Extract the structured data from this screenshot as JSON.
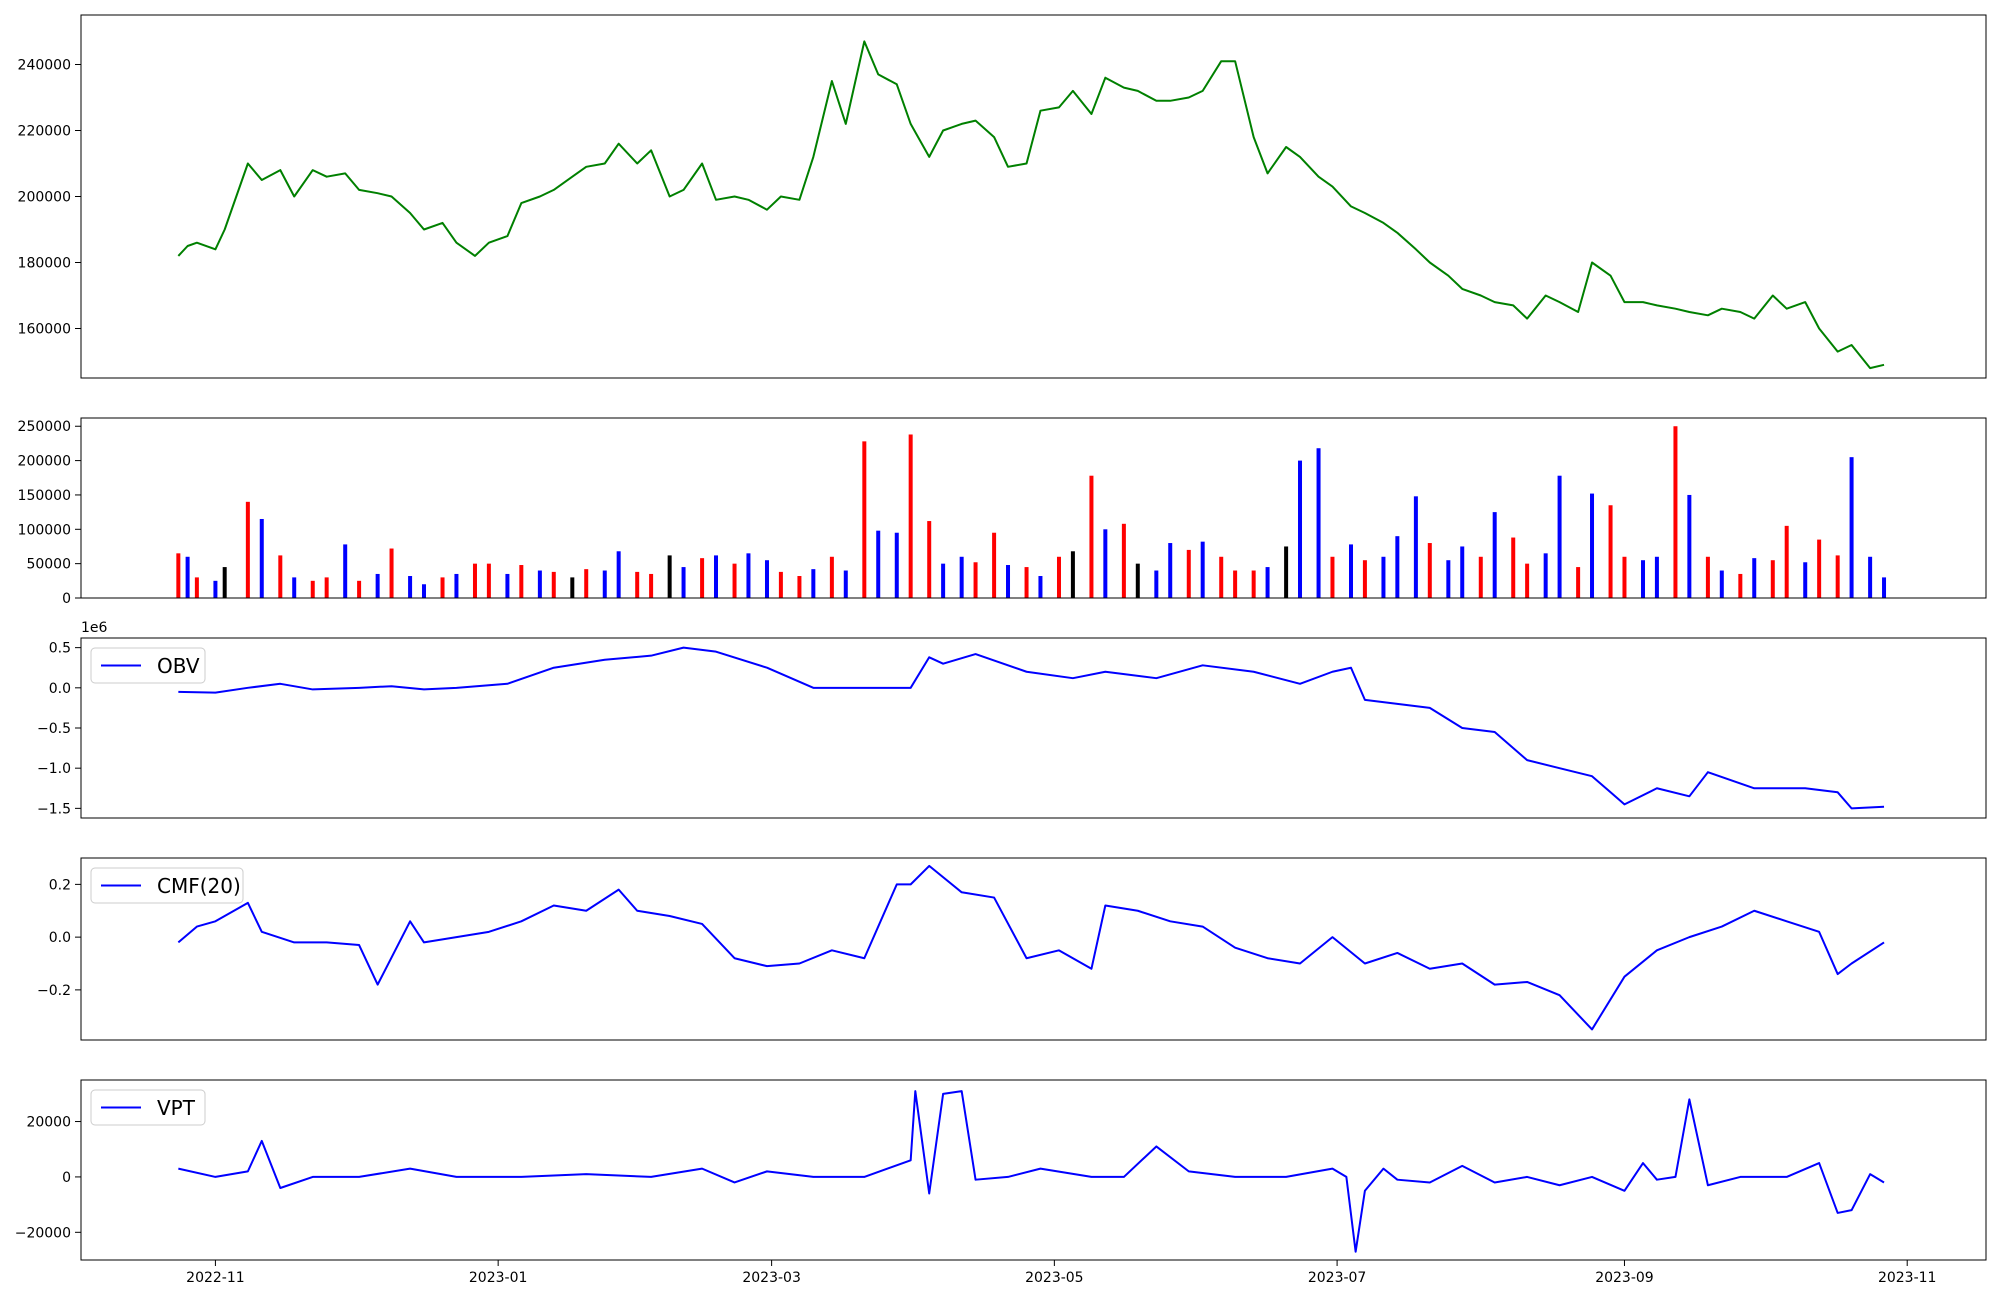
{
  "figure": {
    "x_tick_labels": [
      "2022-11",
      "2023-01",
      "2023-03",
      "2023-05",
      "2023-07",
      "2023-09",
      "2023-11"
    ]
  },
  "chart_data": [
    {
      "type": "line",
      "color": "#008000",
      "xrange": [
        "2022-10-03",
        "2023-11-18"
      ],
      "ylim": [
        145000,
        255000
      ],
      "y_ticks": [
        "160000",
        "180000",
        "200000",
        "220000",
        "240000"
      ],
      "y_tick_values": [
        160000,
        180000,
        200000,
        220000,
        240000
      ],
      "x": [
        "2022-10-24",
        "2022-10-26",
        "2022-10-28",
        "2022-11-01",
        "2022-11-03",
        "2022-11-08",
        "2022-11-11",
        "2022-11-15",
        "2022-11-18",
        "2022-11-22",
        "2022-11-25",
        "2022-11-29",
        "2022-12-02",
        "2022-12-06",
        "2022-12-09",
        "2022-12-13",
        "2022-12-16",
        "2022-12-20",
        "2022-12-23",
        "2022-12-27",
        "2022-12-30",
        "2023-01-03",
        "2023-01-06",
        "2023-01-10",
        "2023-01-13",
        "2023-01-17",
        "2023-01-20",
        "2023-01-24",
        "2023-01-27",
        "2023-01-31",
        "2023-02-03",
        "2023-02-07",
        "2023-02-10",
        "2023-02-14",
        "2023-02-17",
        "2023-02-21",
        "2023-02-24",
        "2023-02-28",
        "2023-03-03",
        "2023-03-07",
        "2023-03-10",
        "2023-03-14",
        "2023-03-17",
        "2023-03-21",
        "2023-03-24",
        "2023-03-28",
        "2023-03-31",
        "2023-04-04",
        "2023-04-07",
        "2023-04-11",
        "2023-04-14",
        "2023-04-18",
        "2023-04-21",
        "2023-04-25",
        "2023-04-28",
        "2023-05-02",
        "2023-05-05",
        "2023-05-09",
        "2023-05-12",
        "2023-05-16",
        "2023-05-19",
        "2023-05-23",
        "2023-05-26",
        "2023-05-30",
        "2023-06-02",
        "2023-06-06",
        "2023-06-09",
        "2023-06-13",
        "2023-06-16",
        "2023-06-20",
        "2023-06-23",
        "2023-06-27",
        "2023-06-30",
        "2023-07-04",
        "2023-07-07",
        "2023-07-11",
        "2023-07-14",
        "2023-07-18",
        "2023-07-21",
        "2023-07-25",
        "2023-07-28",
        "2023-08-01",
        "2023-08-04",
        "2023-08-08",
        "2023-08-11",
        "2023-08-15",
        "2023-08-18",
        "2023-08-22",
        "2023-08-25",
        "2023-08-29",
        "2023-09-01",
        "2023-09-05",
        "2023-09-08",
        "2023-09-12",
        "2023-09-15",
        "2023-09-19",
        "2023-09-22",
        "2023-09-26",
        "2023-09-29",
        "2023-10-03",
        "2023-10-06",
        "2023-10-10",
        "2023-10-13",
        "2023-10-17",
        "2023-10-20",
        "2023-10-24",
        "2023-10-27"
      ],
      "values": [
        182000,
        185000,
        186000,
        184000,
        190000,
        210000,
        205000,
        208000,
        200000,
        208000,
        206000,
        207000,
        202000,
        201000,
        200000,
        195000,
        190000,
        192000,
        186000,
        182000,
        186000,
        188000,
        198000,
        200000,
        202000,
        206000,
        209000,
        210000,
        216000,
        210000,
        214000,
        200000,
        202000,
        210000,
        199000,
        200000,
        199000,
        196000,
        200000,
        199000,
        212000,
        235000,
        222000,
        247000,
        237000,
        234000,
        222000,
        212000,
        220000,
        222000,
        223000,
        218000,
        209000,
        210000,
        226000,
        227000,
        232000,
        225000,
        236000,
        233000,
        232000,
        229000,
        229000,
        230000,
        232000,
        241000,
        241000,
        218000,
        207000,
        215000,
        212000,
        206000,
        203000,
        197000,
        195000,
        192000,
        189000,
        184000,
        180000,
        176000,
        172000,
        170000,
        168000,
        167000,
        163000,
        170000,
        168000,
        165000,
        180000,
        176000,
        168000,
        168000,
        167000,
        166000,
        165000,
        164000,
        166000,
        165000,
        163000,
        170000,
        166000,
        168000,
        160000,
        153000,
        155000,
        148000,
        149000
      ]
    },
    {
      "type": "bar",
      "colors": {
        "up": "#ff0000",
        "down": "#0000ff",
        "flat": "#000000"
      },
      "ylim": [
        0,
        262000
      ],
      "y_ticks": [
        "0",
        "50000",
        "100000",
        "150000",
        "200000",
        "250000"
      ],
      "y_tick_values": [
        0,
        50000,
        100000,
        150000,
        200000,
        250000
      ],
      "x": [
        "2022-10-24",
        "2022-10-26",
        "2022-10-28",
        "2022-11-01",
        "2022-11-03",
        "2022-11-08",
        "2022-11-11",
        "2022-11-15",
        "2022-11-18",
        "2022-11-22",
        "2022-11-25",
        "2022-11-29",
        "2022-12-02",
        "2022-12-06",
        "2022-12-09",
        "2022-12-13",
        "2022-12-16",
        "2022-12-20",
        "2022-12-23",
        "2022-12-27",
        "2022-12-30",
        "2023-01-03",
        "2023-01-06",
        "2023-01-10",
        "2023-01-13",
        "2023-01-17",
        "2023-01-20",
        "2023-01-24",
        "2023-01-27",
        "2023-01-31",
        "2023-02-03",
        "2023-02-07",
        "2023-02-10",
        "2023-02-14",
        "2023-02-17",
        "2023-02-21",
        "2023-02-24",
        "2023-02-28",
        "2023-03-03",
        "2023-03-07",
        "2023-03-10",
        "2023-03-14",
        "2023-03-17",
        "2023-03-21",
        "2023-03-24",
        "2023-03-28",
        "2023-03-31",
        "2023-04-04",
        "2023-04-07",
        "2023-04-11",
        "2023-04-14",
        "2023-04-18",
        "2023-04-21",
        "2023-04-25",
        "2023-04-28",
        "2023-05-02",
        "2023-05-05",
        "2023-05-09",
        "2023-05-12",
        "2023-05-16",
        "2023-05-19",
        "2023-05-23",
        "2023-05-26",
        "2023-05-30",
        "2023-06-02",
        "2023-06-06",
        "2023-06-09",
        "2023-06-13",
        "2023-06-16",
        "2023-06-20",
        "2023-06-23",
        "2023-06-27",
        "2023-06-30",
        "2023-07-04",
        "2023-07-07",
        "2023-07-11",
        "2023-07-14",
        "2023-07-18",
        "2023-07-21",
        "2023-07-25",
        "2023-07-28",
        "2023-08-01",
        "2023-08-04",
        "2023-08-08",
        "2023-08-11",
        "2023-08-15",
        "2023-08-18",
        "2023-08-22",
        "2023-08-25",
        "2023-08-29",
        "2023-09-01",
        "2023-09-05",
        "2023-09-08",
        "2023-09-12",
        "2023-09-15",
        "2023-09-19",
        "2023-09-22",
        "2023-09-26",
        "2023-09-29",
        "2023-10-03",
        "2023-10-06",
        "2023-10-10",
        "2023-10-13",
        "2023-10-17",
        "2023-10-20",
        "2023-10-24",
        "2023-10-27"
      ],
      "values": [
        65000,
        60000,
        30000,
        25000,
        45000,
        140000,
        115000,
        62000,
        30000,
        25000,
        30000,
        78000,
        25000,
        35000,
        72000,
        32000,
        20000,
        30000,
        35000,
        50000,
        50000,
        35000,
        48000,
        40000,
        38000,
        30000,
        42000,
        40000,
        68000,
        38000,
        35000,
        62000,
        45000,
        58000,
        62000,
        50000,
        65000,
        55000,
        38000,
        32000,
        42000,
        60000,
        40000,
        228000,
        98000,
        95000,
        238000,
        112000,
        50000,
        60000,
        52000,
        95000,
        48000,
        45000,
        32000,
        60000,
        68000,
        178000,
        100000,
        108000,
        50000,
        40000,
        80000,
        70000,
        82000,
        60000,
        40000,
        40000,
        45000,
        75000,
        200000,
        218000,
        60000,
        78000,
        55000,
        60000,
        90000,
        148000,
        80000,
        55000,
        75000,
        60000,
        125000,
        88000,
        50000,
        65000,
        178000,
        45000,
        152000,
        135000,
        60000,
        55000,
        60000,
        250000,
        150000,
        60000,
        40000,
        35000,
        58000,
        55000,
        105000,
        52000,
        85000,
        62000,
        205000,
        60000,
        30000
      ],
      "value_colors": [
        "up",
        "down",
        "up",
        "down",
        "flat",
        "up",
        "down",
        "up",
        "down",
        "up",
        "up",
        "down",
        "up",
        "down",
        "up",
        "down",
        "down",
        "up",
        "down",
        "up",
        "up",
        "down",
        "up",
        "down",
        "up",
        "flat",
        "up",
        "down",
        "down",
        "up",
        "up",
        "flat",
        "down",
        "up",
        "down",
        "up",
        "down",
        "down",
        "up",
        "up",
        "down",
        "up",
        "down",
        "up",
        "down",
        "down",
        "up",
        "up",
        "down",
        "down",
        "up",
        "up",
        "down",
        "up",
        "down",
        "up",
        "flat",
        "up",
        "down",
        "up",
        "flat",
        "down",
        "down",
        "up",
        "down",
        "up",
        "up",
        "up",
        "down",
        "flat",
        "down",
        "down",
        "up",
        "down",
        "up",
        "down",
        "down",
        "down",
        "up",
        "down",
        "down",
        "up",
        "down",
        "up",
        "up",
        "down",
        "down",
        "up",
        "down",
        "up",
        "up",
        "down",
        "down",
        "up",
        "down",
        "up",
        "down",
        "up",
        "down",
        "up",
        "up",
        "down",
        "up",
        "up",
        "down",
        "down",
        "down"
      ]
    },
    {
      "type": "line",
      "color": "#0000ff",
      "legend": "OBV",
      "legend_position": "top-left",
      "scale_label": "1e6",
      "ylim": [
        -1.62,
        0.62
      ],
      "y_ticks": [
        "0.5",
        "0.0",
        "−0.5",
        "−1.0",
        "−1.5"
      ],
      "y_tick_values": [
        0.5,
        0.0,
        -0.5,
        -1.0,
        -1.5
      ],
      "x": [
        "2022-10-24",
        "2022-11-01",
        "2022-11-08",
        "2022-11-15",
        "2022-11-22",
        "2022-12-02",
        "2022-12-09",
        "2022-12-16",
        "2022-12-23",
        "2023-01-03",
        "2023-01-13",
        "2023-01-24",
        "2023-02-03",
        "2023-02-10",
        "2023-02-17",
        "2023-02-28",
        "2023-03-10",
        "2023-03-21",
        "2023-03-31",
        "2023-04-04",
        "2023-04-07",
        "2023-04-14",
        "2023-04-25",
        "2023-05-05",
        "2023-05-12",
        "2023-05-23",
        "2023-06-02",
        "2023-06-13",
        "2023-06-23",
        "2023-06-30",
        "2023-07-04",
        "2023-07-07",
        "2023-07-14",
        "2023-07-21",
        "2023-07-28",
        "2023-08-04",
        "2023-08-11",
        "2023-08-18",
        "2023-08-25",
        "2023-08-29",
        "2023-09-01",
        "2023-09-08",
        "2023-09-15",
        "2023-09-19",
        "2023-09-29",
        "2023-10-10",
        "2023-10-17",
        "2023-10-20",
        "2023-10-27"
      ],
      "values": [
        -0.05,
        -0.06,
        0.0,
        0.05,
        -0.02,
        0.0,
        0.02,
        -0.02,
        0.0,
        0.05,
        0.25,
        0.35,
        0.4,
        0.5,
        0.45,
        0.25,
        0.0,
        0.0,
        0.0,
        0.38,
        0.3,
        0.42,
        0.2,
        0.12,
        0.2,
        0.12,
        0.28,
        0.2,
        0.05,
        0.2,
        0.25,
        -0.15,
        -0.2,
        -0.25,
        -0.5,
        -0.55,
        -0.9,
        -1.0,
        -1.1,
        -1.3,
        -1.45,
        -1.25,
        -1.35,
        -1.05,
        -1.25,
        -1.25,
        -1.3,
        -1.5,
        -1.48
      ]
    },
    {
      "type": "line",
      "color": "#0000ff",
      "legend": "CMF(20)",
      "legend_position": "top-left",
      "ylim": [
        -0.39,
        0.3
      ],
      "y_ticks": [
        "0.2",
        "0.0",
        "−0.2"
      ],
      "y_tick_values": [
        0.2,
        0.0,
        -0.2
      ],
      "x": [
        "2022-10-24",
        "2022-10-28",
        "2022-11-01",
        "2022-11-08",
        "2022-11-11",
        "2022-11-18",
        "2022-11-25",
        "2022-12-02",
        "2022-12-06",
        "2022-12-13",
        "2022-12-16",
        "2022-12-23",
        "2022-12-30",
        "2023-01-06",
        "2023-01-13",
        "2023-01-20",
        "2023-01-27",
        "2023-01-31",
        "2023-02-07",
        "2023-02-14",
        "2023-02-21",
        "2023-02-28",
        "2023-03-07",
        "2023-03-14",
        "2023-03-21",
        "2023-03-28",
        "2023-03-31",
        "2023-04-04",
        "2023-04-11",
        "2023-04-18",
        "2023-04-25",
        "2023-05-02",
        "2023-05-09",
        "2023-05-12",
        "2023-05-19",
        "2023-05-26",
        "2023-06-02",
        "2023-06-09",
        "2023-06-16",
        "2023-06-23",
        "2023-06-30",
        "2023-07-07",
        "2023-07-14",
        "2023-07-21",
        "2023-07-28",
        "2023-08-04",
        "2023-08-11",
        "2023-08-18",
        "2023-08-25",
        "2023-09-01",
        "2023-09-08",
        "2023-09-15",
        "2023-09-22",
        "2023-09-29",
        "2023-10-06",
        "2023-10-13",
        "2023-10-17",
        "2023-10-20",
        "2023-10-27"
      ],
      "values": [
        -0.02,
        0.04,
        0.06,
        0.13,
        0.02,
        -0.02,
        -0.02,
        -0.03,
        -0.18,
        0.06,
        -0.02,
        0.0,
        0.02,
        0.06,
        0.12,
        0.1,
        0.18,
        0.1,
        0.08,
        0.05,
        -0.08,
        -0.11,
        -0.1,
        -0.05,
        -0.08,
        0.2,
        0.2,
        0.27,
        0.17,
        0.15,
        -0.08,
        -0.05,
        -0.12,
        0.12,
        0.1,
        0.06,
        0.04,
        -0.04,
        -0.08,
        -0.1,
        0.0,
        -0.1,
        -0.06,
        -0.12,
        -0.1,
        -0.18,
        -0.17,
        -0.22,
        -0.35,
        -0.15,
        -0.05,
        0.0,
        0.04,
        0.1,
        0.06,
        0.02,
        -0.14,
        -0.1,
        -0.02
      ]
    },
    {
      "type": "line",
      "color": "#0000ff",
      "legend": "VPT",
      "legend_position": "top-left",
      "ylim": [
        -30000,
        35000
      ],
      "y_ticks": [
        "20000",
        "0",
        "−20000"
      ],
      "y_tick_values": [
        20000,
        0,
        -20000
      ],
      "x": [
        "2022-10-24",
        "2022-11-01",
        "2022-11-08",
        "2022-11-11",
        "2022-11-15",
        "2022-11-22",
        "2022-12-02",
        "2022-12-13",
        "2022-12-23",
        "2023-01-06",
        "2023-01-20",
        "2023-02-03",
        "2023-02-14",
        "2023-02-21",
        "2023-02-28",
        "2023-03-10",
        "2023-03-21",
        "2023-03-31",
        "2023-04-01",
        "2023-04-04",
        "2023-04-07",
        "2023-04-11",
        "2023-04-14",
        "2023-04-21",
        "2023-04-28",
        "2023-05-09",
        "2023-05-16",
        "2023-05-23",
        "2023-05-30",
        "2023-06-09",
        "2023-06-20",
        "2023-06-30",
        "2023-07-03",
        "2023-07-05",
        "2023-07-07",
        "2023-07-11",
        "2023-07-14",
        "2023-07-21",
        "2023-07-28",
        "2023-08-04",
        "2023-08-11",
        "2023-08-18",
        "2023-08-25",
        "2023-09-01",
        "2023-09-05",
        "2023-09-08",
        "2023-09-12",
        "2023-09-15",
        "2023-09-19",
        "2023-09-26",
        "2023-10-06",
        "2023-10-13",
        "2023-10-17",
        "2023-10-20",
        "2023-10-24",
        "2023-10-27"
      ],
      "values": [
        3000,
        0,
        2000,
        13000,
        -4000,
        0,
        0,
        3000,
        0,
        0,
        1000,
        0,
        3000,
        -2000,
        2000,
        0,
        0,
        6000,
        31000,
        -6000,
        30000,
        31000,
        -1000,
        0,
        3000,
        0,
        0,
        11000,
        2000,
        0,
        0,
        3000,
        0,
        -27000,
        -5000,
        3000,
        -1000,
        -2000,
        4000,
        -2000,
        0,
        -3000,
        0,
        -5000,
        5000,
        -1000,
        0,
        28000,
        -3000,
        0,
        0,
        5000,
        -13000,
        -12000,
        1000,
        -2000
      ]
    }
  ]
}
